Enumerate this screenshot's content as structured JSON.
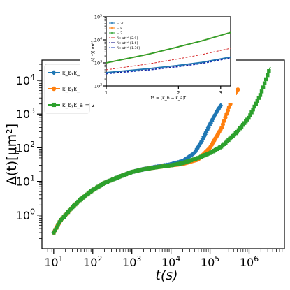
{
  "chart_data": [
    {
      "type": "line",
      "xscale": "log",
      "yscale": "log",
      "xlabel": "t(s)",
      "ylabel": "Δ(t)[μm²]",
      "xlim": [
        5,
        8000000
      ],
      "ylim": [
        0.1,
        40000
      ],
      "x_ticks": [
        {
          "value": 10,
          "base": "10",
          "exp": "1"
        },
        {
          "value": 100,
          "base": "10",
          "exp": "2"
        },
        {
          "value": 1000,
          "base": "10",
          "exp": "3"
        },
        {
          "value": 10000,
          "base": "10",
          "exp": "4"
        },
        {
          "value": 100000,
          "base": "10",
          "exp": "5"
        },
        {
          "value": 1000000,
          "base": "10",
          "exp": "6"
        }
      ],
      "y_ticks": [
        {
          "value": 1,
          "base": "10",
          "exp": "0"
        },
        {
          "value": 10,
          "base": "10",
          "exp": "1"
        },
        {
          "value": 100,
          "base": "10",
          "exp": "2"
        },
        {
          "value": 1000,
          "base": "10",
          "exp": "3"
        },
        {
          "value": 10000,
          "base": "10",
          "exp": "4"
        }
      ],
      "legend": {
        "position": "upper-left"
      },
      "series": [
        {
          "name": "k_b/k_a = 20",
          "legend_ratio": "k_b/k_a",
          "legend_value": "= 20",
          "color": "#1f77b4",
          "marker": "diamond",
          "points": [
            [
              10,
              0.3
            ],
            [
              15,
              0.7
            ],
            [
              20,
              1.0
            ],
            [
              30,
              1.7
            ],
            [
              50,
              3.0
            ],
            [
              100,
              5.5
            ],
            [
              200,
              9.0
            ],
            [
              500,
              14.0
            ],
            [
              1000,
              19.0
            ],
            [
              2000,
              23.0
            ],
            [
              5000,
              28.0
            ],
            [
              10000,
              32.0
            ],
            [
              20000,
              40.0
            ],
            [
              40000,
              70.0
            ],
            [
              60000,
              150.0
            ],
            [
              100000,
              500.0
            ],
            [
              150000,
              1200.0
            ],
            [
              200000,
              2000.0
            ]
          ]
        },
        {
          "name": "k_b/k_a = 8",
          "legend_ratio": "k_b/k_a",
          "legend_value": "= 8",
          "color": "#ff7f0e",
          "marker": "circle",
          "points": [
            [
              10,
              0.3
            ],
            [
              15,
              0.7
            ],
            [
              20,
              1.0
            ],
            [
              30,
              1.7
            ],
            [
              50,
              3.0
            ],
            [
              100,
              5.5
            ],
            [
              200,
              9.0
            ],
            [
              500,
              14.0
            ],
            [
              1000,
              19.0
            ],
            [
              2000,
              23.0
            ],
            [
              5000,
              27.0
            ],
            [
              10000,
              30.0
            ],
            [
              20000,
              33.0
            ],
            [
              50000,
              45.0
            ],
            [
              100000,
              100.0
            ],
            [
              200000,
              400.0
            ],
            [
              300000,
              1500.0
            ],
            [
              400000,
              3500.0
            ],
            [
              550000,
              6000.0
            ]
          ]
        },
        {
          "name": "k_b/k_a = 2",
          "legend_ratio": "k_b/k_a",
          "legend_value": "= 2",
          "color": "#2ca02c",
          "marker": "square",
          "points": [
            [
              10,
              0.3
            ],
            [
              15,
              0.7
            ],
            [
              20,
              1.0
            ],
            [
              30,
              1.7
            ],
            [
              50,
              3.0
            ],
            [
              100,
              5.5
            ],
            [
              200,
              9.0
            ],
            [
              500,
              14.0
            ],
            [
              1000,
              19.0
            ],
            [
              2000,
              23.0
            ],
            [
              5000,
              27.0
            ],
            [
              10000,
              30.0
            ],
            [
              20000,
              35.0
            ],
            [
              50000,
              50.0
            ],
            [
              100000,
              70.0
            ],
            [
              200000,
              110.0
            ],
            [
              500000,
              300.0
            ],
            [
              1000000,
              800.0
            ],
            [
              2000000,
              4000.0
            ],
            [
              3000000,
              15000.0
            ],
            [
              3500000,
              25000.0
            ]
          ]
        }
      ]
    },
    {
      "type": "line",
      "xscale": "log",
      "yscale": "log",
      "xlabel": "t* = (k_b − k_a)t",
      "ylabel": "Δ(t*)[μm²]",
      "xlim": [
        1,
        3.3
      ],
      "ylim": [
        100,
        100000
      ],
      "x_ticks": [
        {
          "value": 1,
          "base": "1",
          "exp": ""
        },
        {
          "value": 2,
          "base": "2",
          "exp": ""
        },
        {
          "value": 3,
          "base": "3",
          "exp": ""
        }
      ],
      "y_ticks": [
        {
          "value": 100,
          "base": "10",
          "exp": "2"
        },
        {
          "value": 1000,
          "base": "10",
          "exp": "3"
        },
        {
          "value": 10000,
          "base": "10",
          "exp": "4"
        },
        {
          "value": 100000,
          "base": "10",
          "exp": "5"
        }
      ],
      "legend": {
        "position": "upper-left"
      },
      "series": [
        {
          "name": "k_b/k_a = 20",
          "kind": "data",
          "color": "#1f77b4",
          "label": "= 20",
          "points": [
            [
              1,
              380
            ],
            [
              1.5,
              560
            ],
            [
              2,
              780
            ],
            [
              2.5,
              1050
            ],
            [
              3.3,
              1800
            ]
          ]
        },
        {
          "name": "k_b/k_a = 8",
          "kind": "data",
          "color": "#ff7f0e",
          "label": "= 8",
          "points": [
            [
              1,
              1000
            ],
            [
              1.5,
              2400
            ],
            [
              2,
              5000
            ],
            [
              2.5,
              9000
            ],
            [
              3.3,
              21000
            ]
          ]
        },
        {
          "name": "k_b/k_a = 2",
          "kind": "data",
          "color": "#2ca02c",
          "label": "= 2",
          "points": [
            [
              1,
              1000
            ],
            [
              1.5,
              2400
            ],
            [
              2,
              5000
            ],
            [
              2.5,
              9000
            ],
            [
              3.3,
              21000
            ]
          ]
        },
        {
          "name": "fit: αt*^{2.9}",
          "kind": "fit",
          "color": "#d62728",
          "label": "fit: αt*^{2.9}",
          "points": [
            [
              1,
              500
            ],
            [
              1.5,
              900
            ],
            [
              2,
              1500
            ],
            [
              2.5,
              2300
            ],
            [
              3.3,
              4300
            ]
          ]
        },
        {
          "name": "fit: αt*^{1.6}",
          "kind": "fit",
          "color": "#00007f",
          "label": "fit: αt*^{1.6}",
          "points": [
            [
              1,
              350
            ],
            [
              1.5,
              500
            ],
            [
              2,
              700
            ],
            [
              2.5,
              950
            ],
            [
              3.3,
              1650
            ]
          ]
        },
        {
          "name": "fit: αt*^{1.36}",
          "kind": "fit",
          "color": "#1f3fbf",
          "label": "fit: αt*^{1.36}",
          "points": [
            [
              1,
              330
            ],
            [
              1.5,
              480
            ],
            [
              2,
              670
            ],
            [
              2.5,
              920
            ],
            [
              3.3,
              1600
            ]
          ]
        }
      ]
    }
  ]
}
